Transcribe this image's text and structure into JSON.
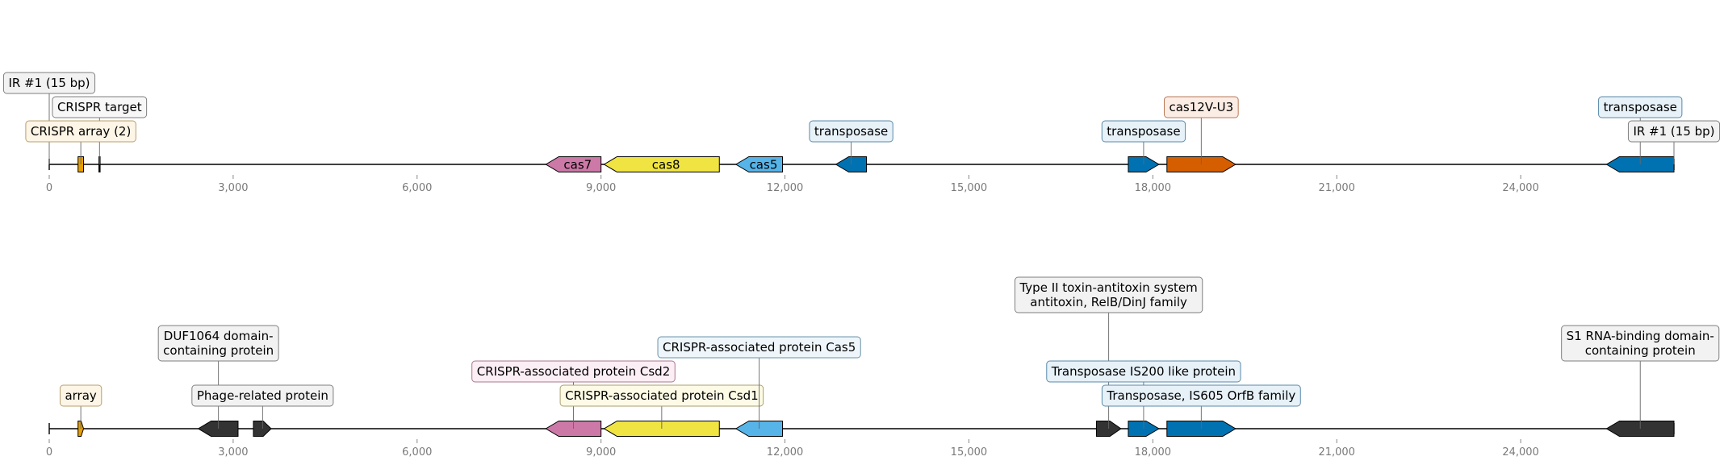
{
  "chart_data": {
    "type": "genome-map",
    "axis": {
      "xlim": [
        0,
        26500
      ],
      "ticks": [
        0,
        3000,
        6000,
        9000,
        12000,
        15000,
        18000,
        21000,
        24000
      ],
      "tick_labels": [
        "0",
        "3,000",
        "6,000",
        "9,000",
        "12,000",
        "15,000",
        "18,000",
        "21,000",
        "24,000"
      ]
    },
    "tracks": [
      {
        "id": "top",
        "features": [
          {
            "start": 470,
            "end": 560,
            "strand": 0,
            "color": "#e69f00",
            "label": ""
          },
          {
            "start": 810,
            "end": 830,
            "strand": 0,
            "color": "#000000",
            "label": ""
          },
          {
            "start": 8100,
            "end": 9000,
            "strand": -1,
            "color": "#cc79a7",
            "label": "cas7"
          },
          {
            "start": 9050,
            "end": 10930,
            "strand": -1,
            "color": "#f0e442",
            "label": "cas8"
          },
          {
            "start": 11200,
            "end": 11960,
            "strand": -1,
            "color": "#56b4e9",
            "label": "cas5"
          },
          {
            "start": 12830,
            "end": 13330,
            "strand": -1,
            "color": "#0072b2",
            "label": ""
          },
          {
            "start": 17600,
            "end": 18100,
            "strand": 1,
            "color": "#0072b2",
            "label": ""
          },
          {
            "start": 18230,
            "end": 19350,
            "strand": 1,
            "color": "#d55e00",
            "label": ""
          },
          {
            "start": 25400,
            "end": 26500,
            "strand": -1,
            "color": "#0072b2",
            "label": ""
          }
        ],
        "annotations": [
          {
            "text": [
              "IR #1 (15 bp)"
            ],
            "pos": 0,
            "level": 3,
            "fill": "#f2f2f2",
            "stroke": "#7f7f7f"
          },
          {
            "text": [
              "CRISPR target"
            ],
            "pos": 820,
            "level": 2,
            "fill": "#f7f7f7",
            "stroke": "#7f7f7f"
          },
          {
            "text": [
              "CRISPR array (2)"
            ],
            "pos": 515,
            "level": 1,
            "fill": "#fdf5e6",
            "stroke": "#b8a070"
          },
          {
            "text": [
              "transposase"
            ],
            "pos": 13080,
            "level": 1,
            "fill": "#e6f1f8",
            "stroke": "#5b8aa8"
          },
          {
            "text": [
              "transposase"
            ],
            "pos": 17850,
            "level": 1,
            "fill": "#e6f1f8",
            "stroke": "#5b8aa8"
          },
          {
            "text": [
              "cas12V-U3"
            ],
            "pos": 18790,
            "level": 2,
            "fill": "#fbece4",
            "stroke": "#b87a5a"
          },
          {
            "text": [
              "transposase"
            ],
            "pos": 25950,
            "level": 2,
            "fill": "#e6f1f8",
            "stroke": "#5b8aa8"
          },
          {
            "text": [
              "IR #1 (15 bp)"
            ],
            "pos": 26500,
            "level": 1,
            "fill": "#f2f2f2",
            "stroke": "#7f7f7f"
          }
        ]
      },
      {
        "id": "bottom",
        "features": [
          {
            "start": 470,
            "end": 560,
            "strand": 1,
            "color": "#e69f00",
            "label": ""
          },
          {
            "start": 2430,
            "end": 3080,
            "strand": -1,
            "color": "#333333",
            "label": ""
          },
          {
            "start": 3330,
            "end": 3620,
            "strand": 1,
            "color": "#333333",
            "label": ""
          },
          {
            "start": 8100,
            "end": 9000,
            "strand": -1,
            "color": "#cc79a7",
            "label": ""
          },
          {
            "start": 9050,
            "end": 10930,
            "strand": -1,
            "color": "#f0e442",
            "label": ""
          },
          {
            "start": 11200,
            "end": 11960,
            "strand": -1,
            "color": "#56b4e9",
            "label": ""
          },
          {
            "start": 17080,
            "end": 17480,
            "strand": 1,
            "color": "#333333",
            "label": ""
          },
          {
            "start": 17600,
            "end": 18100,
            "strand": 1,
            "color": "#0072b2",
            "label": ""
          },
          {
            "start": 18230,
            "end": 19350,
            "strand": 1,
            "color": "#0072b2",
            "label": ""
          },
          {
            "start": 25400,
            "end": 26500,
            "strand": -1,
            "color": "#333333",
            "label": ""
          }
        ],
        "annotations": [
          {
            "text": [
              "array"
            ],
            "pos": 515,
            "level": 1,
            "fill": "#fdf5e6",
            "stroke": "#b8a070"
          },
          {
            "text": [
              "DUF1064 domain-",
              "containing protein"
            ],
            "pos": 2760,
            "level": 3,
            "fill": "#f2f2f2",
            "stroke": "#7f7f7f"
          },
          {
            "text": [
              "Phage-related protein"
            ],
            "pos": 3480,
            "level": 1,
            "fill": "#f2f2f2",
            "stroke": "#7f7f7f"
          },
          {
            "text": [
              "CRISPR-associated protein Csd2"
            ],
            "pos": 8550,
            "level": 2,
            "fill": "#fbeef4",
            "stroke": "#a8788f"
          },
          {
            "text": [
              "CRISPR-associated protein Csd1"
            ],
            "pos": 9990,
            "level": 1,
            "fill": "#fdfbe6",
            "stroke": "#a8a070"
          },
          {
            "text": [
              "CRISPR-associated protein Cas5"
            ],
            "pos": 11580,
            "level": 3,
            "fill": "#eef6fb",
            "stroke": "#6a93a8"
          },
          {
            "text": [
              "Type II toxin-antitoxin system",
              "antitoxin, RelB/DinJ family"
            ],
            "pos": 17280,
            "level": 5,
            "fill": "#f2f2f2",
            "stroke": "#7f7f7f"
          },
          {
            "text": [
              "Transposase IS200 like protein"
            ],
            "pos": 17850,
            "level": 2,
            "fill": "#e6f1f8",
            "stroke": "#5b8aa8"
          },
          {
            "text": [
              "Transposase, IS605 OrfB family"
            ],
            "pos": 18790,
            "level": 1,
            "fill": "#e6f1f8",
            "stroke": "#5b8aa8"
          },
          {
            "text": [
              "S1 RNA-binding domain-",
              "containing protein"
            ],
            "pos": 25950,
            "level": 3,
            "fill": "#f2f2f2",
            "stroke": "#7f7f7f"
          }
        ]
      }
    ]
  }
}
